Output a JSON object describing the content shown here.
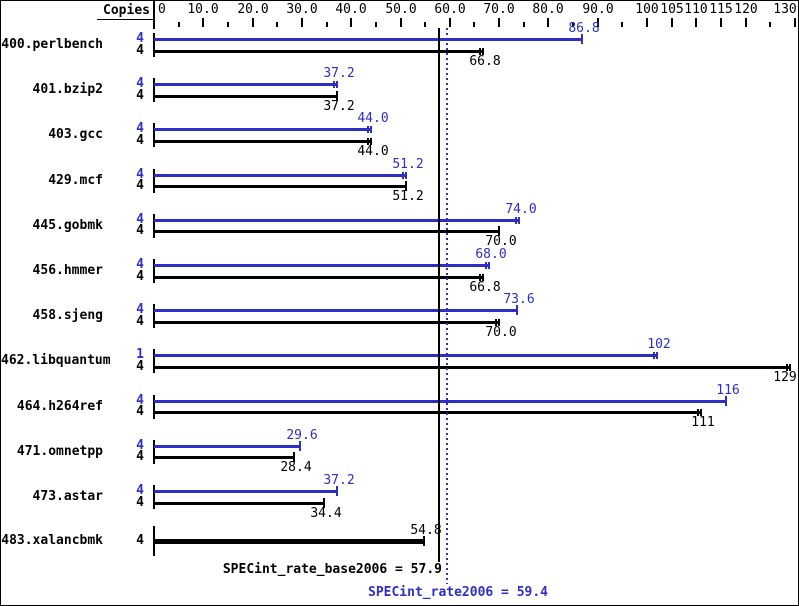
{
  "colors": {
    "peak_blue": "#2e2ec6",
    "base_black": "#000000",
    "background": "#ffffff"
  },
  "header": {
    "copies_label": "Copies"
  },
  "axis": {
    "major_ticks": [
      {
        "v": 0,
        "label": "0"
      },
      {
        "v": 10,
        "label": "10.0"
      },
      {
        "v": 20,
        "label": "20.0"
      },
      {
        "v": 30,
        "label": "30.0"
      },
      {
        "v": 40,
        "label": "40.0"
      },
      {
        "v": 50,
        "label": "50.0"
      },
      {
        "v": 60,
        "label": "60.0"
      },
      {
        "v": 70,
        "label": "70.0"
      },
      {
        "v": 80,
        "label": "80.0"
      },
      {
        "v": 90,
        "label": "90.0"
      },
      {
        "v": 100,
        "label": "100"
      },
      {
        "v": 105,
        "label": "105"
      },
      {
        "v": 110,
        "label": "110"
      },
      {
        "v": 115,
        "label": "115"
      },
      {
        "v": 120,
        "label": "120"
      },
      {
        "v": 130,
        "label": "130"
      }
    ],
    "minor_ticks": [
      5,
      15,
      25,
      35,
      45,
      55,
      65,
      75,
      85,
      95,
      125
    ],
    "xlim": [
      0,
      130
    ]
  },
  "benchmarks": [
    {
      "name": "400.perlbench",
      "bars": [
        {
          "kind": "peak",
          "copies": "4",
          "value": 86.8,
          "label": "86.8",
          "marker": "cap"
        },
        {
          "kind": "base",
          "copies": "4",
          "value": 66.8,
          "label": "66.8",
          "marker": "double"
        }
      ]
    },
    {
      "name": "401.bzip2",
      "bars": [
        {
          "kind": "peak",
          "copies": "4",
          "value": 37.2,
          "label": "37.2",
          "marker": "double"
        },
        {
          "kind": "base",
          "copies": "4",
          "value": 37.2,
          "label": "37.2",
          "marker": "cap"
        }
      ]
    },
    {
      "name": "403.gcc",
      "bars": [
        {
          "kind": "peak",
          "copies": "4",
          "value": 44.0,
          "label": "44.0",
          "marker": "double"
        },
        {
          "kind": "base",
          "copies": "4",
          "value": 44.0,
          "label": "44.0",
          "marker": "double"
        }
      ]
    },
    {
      "name": "429.mcf",
      "bars": [
        {
          "kind": "peak",
          "copies": "4",
          "value": 51.2,
          "label": "51.2",
          "marker": "double"
        },
        {
          "kind": "base",
          "copies": "4",
          "value": 51.2,
          "label": "51.2",
          "marker": "cap"
        }
      ]
    },
    {
      "name": "445.gobmk",
      "bars": [
        {
          "kind": "peak",
          "copies": "4",
          "value": 74.0,
          "label": "74.0",
          "marker": "double"
        },
        {
          "kind": "base",
          "copies": "4",
          "value": 70.0,
          "label": "70.0",
          "marker": "cap"
        }
      ]
    },
    {
      "name": "456.hmmer",
      "bars": [
        {
          "kind": "peak",
          "copies": "4",
          "value": 68.0,
          "label": "68.0",
          "marker": "double"
        },
        {
          "kind": "base",
          "copies": "4",
          "value": 66.8,
          "label": "66.8",
          "marker": "double"
        }
      ]
    },
    {
      "name": "458.sjeng",
      "bars": [
        {
          "kind": "peak",
          "copies": "4",
          "value": 73.6,
          "label": "73.6",
          "marker": "cap"
        },
        {
          "kind": "base",
          "copies": "4",
          "value": 70.0,
          "label": "70.0",
          "marker": "double"
        }
      ]
    },
    {
      "name": "462.libquantum",
      "bars": [
        {
          "kind": "peak",
          "copies": "1",
          "value": 102,
          "label": "102",
          "marker": "double"
        },
        {
          "kind": "base",
          "copies": "4",
          "value": 129,
          "label": "129",
          "marker": "double"
        }
      ]
    },
    {
      "name": "464.h264ref",
      "bars": [
        {
          "kind": "peak",
          "copies": "4",
          "value": 116,
          "label": "116",
          "marker": "cap"
        },
        {
          "kind": "base",
          "copies": "4",
          "value": 111,
          "label": "111",
          "marker": "double"
        }
      ]
    },
    {
      "name": "471.omnetpp",
      "bars": [
        {
          "kind": "peak",
          "copies": "4",
          "value": 29.6,
          "label": "29.6",
          "marker": "cap"
        },
        {
          "kind": "base",
          "copies": "4",
          "value": 28.4,
          "label": "28.4",
          "marker": "cap"
        }
      ]
    },
    {
      "name": "473.astar",
      "bars": [
        {
          "kind": "peak",
          "copies": "4",
          "value": 37.2,
          "label": "37.2",
          "marker": "cap"
        },
        {
          "kind": "base",
          "copies": "4",
          "value": 34.4,
          "label": "34.4",
          "marker": "cap"
        }
      ]
    },
    {
      "name": "483.xalancbmk",
      "bars": [
        {
          "kind": "base",
          "copies": "4",
          "value": 54.8,
          "label": "54.8",
          "marker": "cap",
          "thick": true
        }
      ]
    }
  ],
  "summary": {
    "base_text": "SPECint_rate_base2006 = 57.9",
    "peak_text": "SPECint_rate2006 = 59.4",
    "base_value": 57.9,
    "peak_value": 59.4
  },
  "chart_data": {
    "type": "bar",
    "orientation": "horizontal",
    "categories": [
      "400.perlbench",
      "401.bzip2",
      "403.gcc",
      "429.mcf",
      "445.gobmk",
      "456.hmmer",
      "458.sjeng",
      "462.libquantum",
      "464.h264ref",
      "471.omnetpp",
      "473.astar",
      "483.xalancbmk"
    ],
    "series": [
      {
        "name": "SPECint_rate2006 (peak)",
        "color": "#2e2ec6",
        "copies": [
          4,
          4,
          4,
          4,
          4,
          4,
          4,
          1,
          4,
          4,
          4,
          null
        ],
        "values": [
          86.8,
          37.2,
          44.0,
          51.2,
          74.0,
          68.0,
          73.6,
          102,
          116,
          29.6,
          37.2,
          null
        ]
      },
      {
        "name": "SPECint_rate_base2006 (base)",
        "color": "#000000",
        "copies": [
          4,
          4,
          4,
          4,
          4,
          4,
          4,
          4,
          4,
          4,
          4,
          4
        ],
        "values": [
          66.8,
          37.2,
          44.0,
          51.2,
          70.0,
          66.8,
          70.0,
          129,
          111,
          28.4,
          34.4,
          54.8
        ]
      }
    ],
    "reference_lines": [
      {
        "label": "SPECint_rate_base2006",
        "value": 57.9,
        "style": "solid",
        "color": "#000000"
      },
      {
        "label": "SPECint_rate2006",
        "value": 59.4,
        "style": "dotted",
        "color": "#2e2ec6"
      }
    ],
    "xlabel": "",
    "ylabel": "Copies",
    "xlim": [
      0,
      130
    ],
    "grid": false,
    "legend_position": "none"
  }
}
